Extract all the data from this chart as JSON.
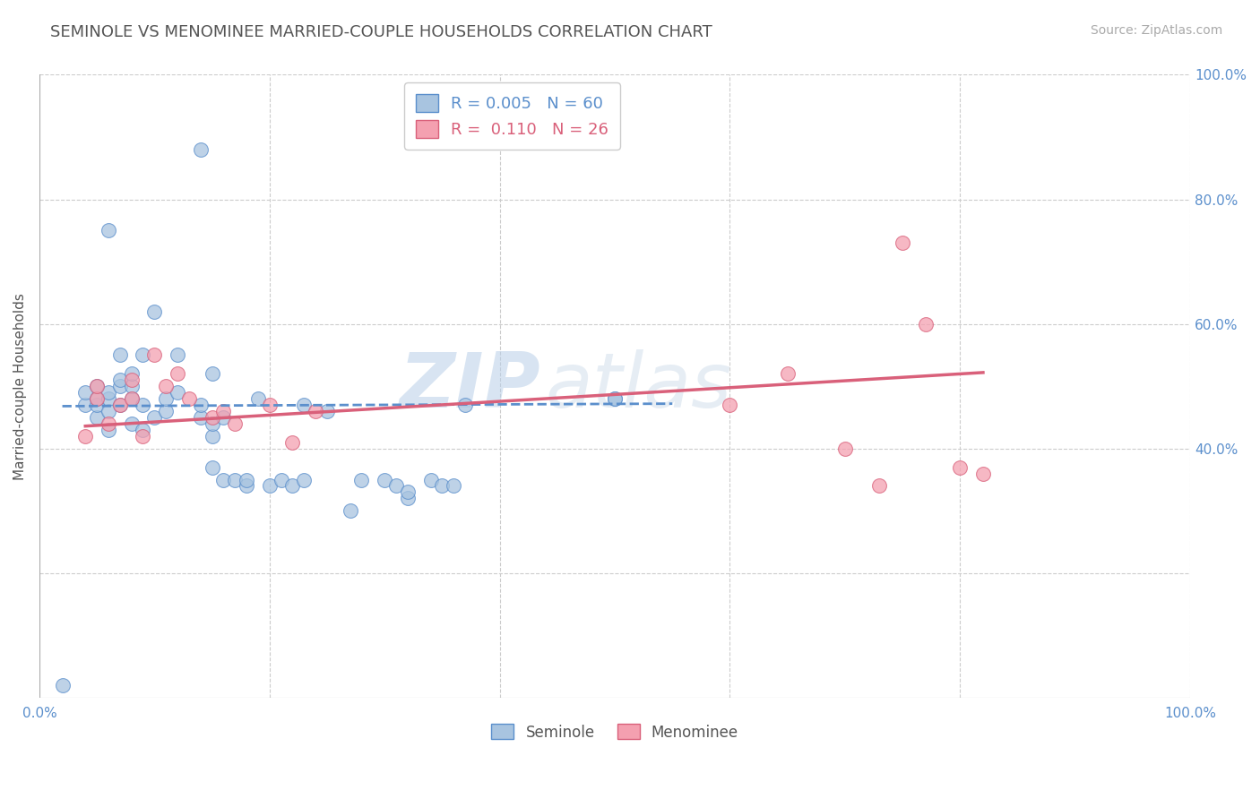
{
  "title": "SEMINOLE VS MENOMINEE MARRIED-COUPLE HOUSEHOLDS CORRELATION CHART",
  "source_text": "Source: ZipAtlas.com",
  "ylabel": "Married-couple Households",
  "xlim": [
    0,
    1
  ],
  "ylim": [
    0,
    1
  ],
  "seminole_R": "0.005",
  "seminole_N": "60",
  "menominee_R": "0.110",
  "menominee_N": "26",
  "seminole_color": "#a8c4e0",
  "menominee_color": "#f4a0b0",
  "trend_seminole_color": "#5b8fcc",
  "trend_menominee_color": "#d9607a",
  "watermark_zip": "ZIP",
  "watermark_atlas": "atlas",
  "legend_label_1": "Seminole",
  "legend_label_2": "Menominee",
  "seminole_x": [
    0.02,
    0.04,
    0.04,
    0.05,
    0.05,
    0.05,
    0.05,
    0.06,
    0.06,
    0.06,
    0.06,
    0.07,
    0.07,
    0.07,
    0.07,
    0.08,
    0.08,
    0.08,
    0.08,
    0.09,
    0.09,
    0.09,
    0.1,
    0.1,
    0.11,
    0.11,
    0.12,
    0.12,
    0.14,
    0.14,
    0.15,
    0.15,
    0.15,
    0.15,
    0.16,
    0.16,
    0.17,
    0.18,
    0.18,
    0.19,
    0.2,
    0.21,
    0.22,
    0.23,
    0.23,
    0.25,
    0.27,
    0.28,
    0.3,
    0.31,
    0.32,
    0.32,
    0.34,
    0.35,
    0.36,
    0.37,
    0.5,
    0.5,
    0.06,
    0.14
  ],
  "seminole_y": [
    0.02,
    0.47,
    0.49,
    0.45,
    0.47,
    0.48,
    0.5,
    0.43,
    0.46,
    0.48,
    0.49,
    0.47,
    0.5,
    0.51,
    0.55,
    0.44,
    0.48,
    0.5,
    0.52,
    0.43,
    0.47,
    0.55,
    0.45,
    0.62,
    0.46,
    0.48,
    0.49,
    0.55,
    0.45,
    0.47,
    0.37,
    0.42,
    0.44,
    0.52,
    0.35,
    0.45,
    0.35,
    0.34,
    0.35,
    0.48,
    0.34,
    0.35,
    0.34,
    0.35,
    0.47,
    0.46,
    0.3,
    0.35,
    0.35,
    0.34,
    0.32,
    0.33,
    0.35,
    0.34,
    0.34,
    0.47,
    0.48,
    0.48,
    0.75,
    0.88
  ],
  "menominee_x": [
    0.04,
    0.05,
    0.05,
    0.06,
    0.07,
    0.08,
    0.08,
    0.09,
    0.1,
    0.11,
    0.12,
    0.13,
    0.15,
    0.16,
    0.17,
    0.2,
    0.22,
    0.24,
    0.6,
    0.65,
    0.7,
    0.73,
    0.75,
    0.77,
    0.8,
    0.82
  ],
  "menominee_y": [
    0.42,
    0.48,
    0.5,
    0.44,
    0.47,
    0.48,
    0.51,
    0.42,
    0.55,
    0.5,
    0.52,
    0.48,
    0.45,
    0.46,
    0.44,
    0.47,
    0.41,
    0.46,
    0.47,
    0.52,
    0.4,
    0.34,
    0.73,
    0.6,
    0.37,
    0.36
  ],
  "seminole_trend_x": [
    0.02,
    0.55
  ],
  "seminole_trend_y": [
    0.468,
    0.472
  ],
  "menominee_trend_x": [
    0.04,
    0.82
  ],
  "menominee_trend_y": [
    0.436,
    0.522
  ],
  "grid_color": "#cccccc",
  "background_color": "#ffffff",
  "title_color": "#555555",
  "axis_color": "#5b8fcc",
  "right_yticks": [
    0.4,
    0.6,
    0.8,
    1.0
  ],
  "right_yticklabels": [
    "40.0%",
    "60.0%",
    "80.0%",
    "100.0%"
  ]
}
